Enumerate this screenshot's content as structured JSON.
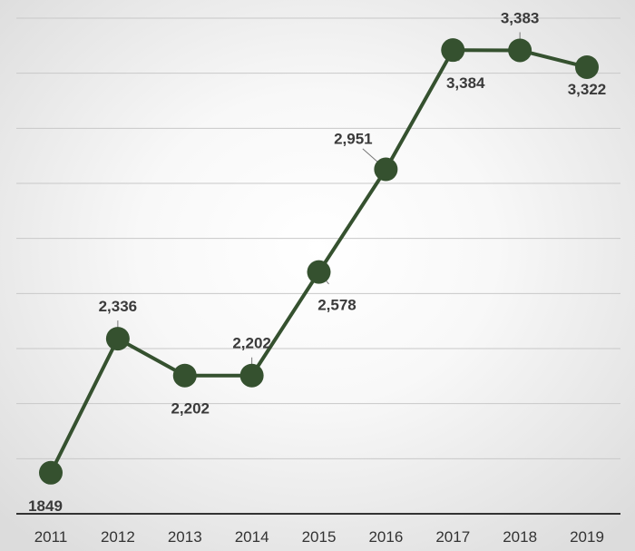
{
  "chart_data": {
    "type": "line",
    "title": "",
    "xlabel": "",
    "ylabel": "",
    "categories": [
      "2011",
      "2012",
      "2013",
      "2014",
      "2015",
      "2016",
      "2017",
      "2018",
      "2019"
    ],
    "series": [
      {
        "values": [
          1849,
          2336,
          2202,
          2202,
          2578,
          2951,
          3384,
          3383,
          3322
        ],
        "labels": [
          "1849",
          "2,336",
          "2,202",
          "2,202",
          "2,578",
          "2,951",
          "3,384",
          "3,383",
          "3,322"
        ],
        "label_positions": [
          "below",
          "above",
          "below",
          "above",
          "below",
          "above",
          "below",
          "above",
          "below"
        ]
      }
    ],
    "ylim": [
      1700,
      3500
    ],
    "y_gridline_step": 200,
    "y_axis_labels_shown": false,
    "grid": true,
    "legend": "none",
    "colors": {
      "line": "#35512f",
      "marker": "#35512f",
      "gridline": "#c8c8c8",
      "axis": "#333333",
      "background_center": "#ffffff",
      "background_edge": "#dcdcdc"
    }
  }
}
